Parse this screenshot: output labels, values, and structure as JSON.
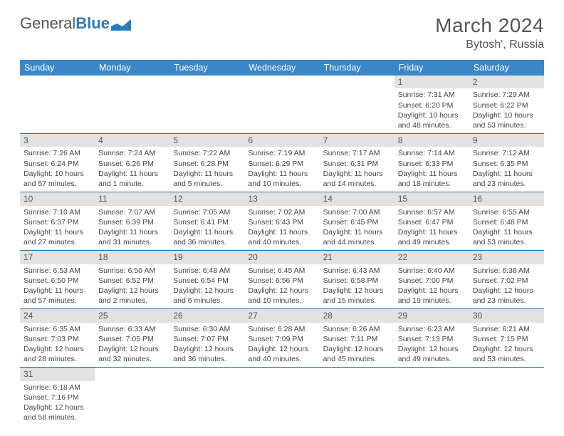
{
  "logo": {
    "text_a": "General",
    "text_b": "Blue"
  },
  "title": "March 2024",
  "location": "Bytosh', Russia",
  "colors": {
    "header_bg": "#3a86c8",
    "header_fg": "#ffffff",
    "daynum_bg": "#e2e2e2",
    "row_border": "#2b6fb0",
    "text": "#333333"
  },
  "day_labels": [
    "Sunday",
    "Monday",
    "Tuesday",
    "Wednesday",
    "Thursday",
    "Friday",
    "Saturday"
  ],
  "weeks": [
    [
      null,
      null,
      null,
      null,
      null,
      {
        "n": "1",
        "sr": "Sunrise: 7:31 AM",
        "ss": "Sunset: 6:20 PM",
        "dl1": "Daylight: 10 hours",
        "dl2": "and 48 minutes."
      },
      {
        "n": "2",
        "sr": "Sunrise: 7:29 AM",
        "ss": "Sunset: 6:22 PM",
        "dl1": "Daylight: 10 hours",
        "dl2": "and 53 minutes."
      }
    ],
    [
      {
        "n": "3",
        "sr": "Sunrise: 7:26 AM",
        "ss": "Sunset: 6:24 PM",
        "dl1": "Daylight: 10 hours",
        "dl2": "and 57 minutes."
      },
      {
        "n": "4",
        "sr": "Sunrise: 7:24 AM",
        "ss": "Sunset: 6:26 PM",
        "dl1": "Daylight: 11 hours",
        "dl2": "and 1 minute."
      },
      {
        "n": "5",
        "sr": "Sunrise: 7:22 AM",
        "ss": "Sunset: 6:28 PM",
        "dl1": "Daylight: 11 hours",
        "dl2": "and 5 minutes."
      },
      {
        "n": "6",
        "sr": "Sunrise: 7:19 AM",
        "ss": "Sunset: 6:29 PM",
        "dl1": "Daylight: 11 hours",
        "dl2": "and 10 minutes."
      },
      {
        "n": "7",
        "sr": "Sunrise: 7:17 AM",
        "ss": "Sunset: 6:31 PM",
        "dl1": "Daylight: 11 hours",
        "dl2": "and 14 minutes."
      },
      {
        "n": "8",
        "sr": "Sunrise: 7:14 AM",
        "ss": "Sunset: 6:33 PM",
        "dl1": "Daylight: 11 hours",
        "dl2": "and 18 minutes."
      },
      {
        "n": "9",
        "sr": "Sunrise: 7:12 AM",
        "ss": "Sunset: 6:35 PM",
        "dl1": "Daylight: 11 hours",
        "dl2": "and 23 minutes."
      }
    ],
    [
      {
        "n": "10",
        "sr": "Sunrise: 7:10 AM",
        "ss": "Sunset: 6:37 PM",
        "dl1": "Daylight: 11 hours",
        "dl2": "and 27 minutes."
      },
      {
        "n": "11",
        "sr": "Sunrise: 7:07 AM",
        "ss": "Sunset: 6:39 PM",
        "dl1": "Daylight: 11 hours",
        "dl2": "and 31 minutes."
      },
      {
        "n": "12",
        "sr": "Sunrise: 7:05 AM",
        "ss": "Sunset: 6:41 PM",
        "dl1": "Daylight: 11 hours",
        "dl2": "and 36 minutes."
      },
      {
        "n": "13",
        "sr": "Sunrise: 7:02 AM",
        "ss": "Sunset: 6:43 PM",
        "dl1": "Daylight: 11 hours",
        "dl2": "and 40 minutes."
      },
      {
        "n": "14",
        "sr": "Sunrise: 7:00 AM",
        "ss": "Sunset: 6:45 PM",
        "dl1": "Daylight: 11 hours",
        "dl2": "and 44 minutes."
      },
      {
        "n": "15",
        "sr": "Sunrise: 6:57 AM",
        "ss": "Sunset: 6:47 PM",
        "dl1": "Daylight: 11 hours",
        "dl2": "and 49 minutes."
      },
      {
        "n": "16",
        "sr": "Sunrise: 6:55 AM",
        "ss": "Sunset: 6:48 PM",
        "dl1": "Daylight: 11 hours",
        "dl2": "and 53 minutes."
      }
    ],
    [
      {
        "n": "17",
        "sr": "Sunrise: 6:53 AM",
        "ss": "Sunset: 6:50 PM",
        "dl1": "Daylight: 11 hours",
        "dl2": "and 57 minutes."
      },
      {
        "n": "18",
        "sr": "Sunrise: 6:50 AM",
        "ss": "Sunset: 6:52 PM",
        "dl1": "Daylight: 12 hours",
        "dl2": "and 2 minutes."
      },
      {
        "n": "19",
        "sr": "Sunrise: 6:48 AM",
        "ss": "Sunset: 6:54 PM",
        "dl1": "Daylight: 12 hours",
        "dl2": "and 6 minutes."
      },
      {
        "n": "20",
        "sr": "Sunrise: 6:45 AM",
        "ss": "Sunset: 6:56 PM",
        "dl1": "Daylight: 12 hours",
        "dl2": "and 10 minutes."
      },
      {
        "n": "21",
        "sr": "Sunrise: 6:43 AM",
        "ss": "Sunset: 6:58 PM",
        "dl1": "Daylight: 12 hours",
        "dl2": "and 15 minutes."
      },
      {
        "n": "22",
        "sr": "Sunrise: 6:40 AM",
        "ss": "Sunset: 7:00 PM",
        "dl1": "Daylight: 12 hours",
        "dl2": "and 19 minutes."
      },
      {
        "n": "23",
        "sr": "Sunrise: 6:38 AM",
        "ss": "Sunset: 7:02 PM",
        "dl1": "Daylight: 12 hours",
        "dl2": "and 23 minutes."
      }
    ],
    [
      {
        "n": "24",
        "sr": "Sunrise: 6:35 AM",
        "ss": "Sunset: 7:03 PM",
        "dl1": "Daylight: 12 hours",
        "dl2": "and 28 minutes."
      },
      {
        "n": "25",
        "sr": "Sunrise: 6:33 AM",
        "ss": "Sunset: 7:05 PM",
        "dl1": "Daylight: 12 hours",
        "dl2": "and 32 minutes."
      },
      {
        "n": "26",
        "sr": "Sunrise: 6:30 AM",
        "ss": "Sunset: 7:07 PM",
        "dl1": "Daylight: 12 hours",
        "dl2": "and 36 minutes."
      },
      {
        "n": "27",
        "sr": "Sunrise: 6:28 AM",
        "ss": "Sunset: 7:09 PM",
        "dl1": "Daylight: 12 hours",
        "dl2": "and 40 minutes."
      },
      {
        "n": "28",
        "sr": "Sunrise: 6:26 AM",
        "ss": "Sunset: 7:11 PM",
        "dl1": "Daylight: 12 hours",
        "dl2": "and 45 minutes."
      },
      {
        "n": "29",
        "sr": "Sunrise: 6:23 AM",
        "ss": "Sunset: 7:13 PM",
        "dl1": "Daylight: 12 hours",
        "dl2": "and 49 minutes."
      },
      {
        "n": "30",
        "sr": "Sunrise: 6:21 AM",
        "ss": "Sunset: 7:15 PM",
        "dl1": "Daylight: 12 hours",
        "dl2": "and 53 minutes."
      }
    ],
    [
      {
        "n": "31",
        "sr": "Sunrise: 6:18 AM",
        "ss": "Sunset: 7:16 PM",
        "dl1": "Daylight: 12 hours",
        "dl2": "and 58 minutes."
      },
      null,
      null,
      null,
      null,
      null,
      null
    ]
  ]
}
